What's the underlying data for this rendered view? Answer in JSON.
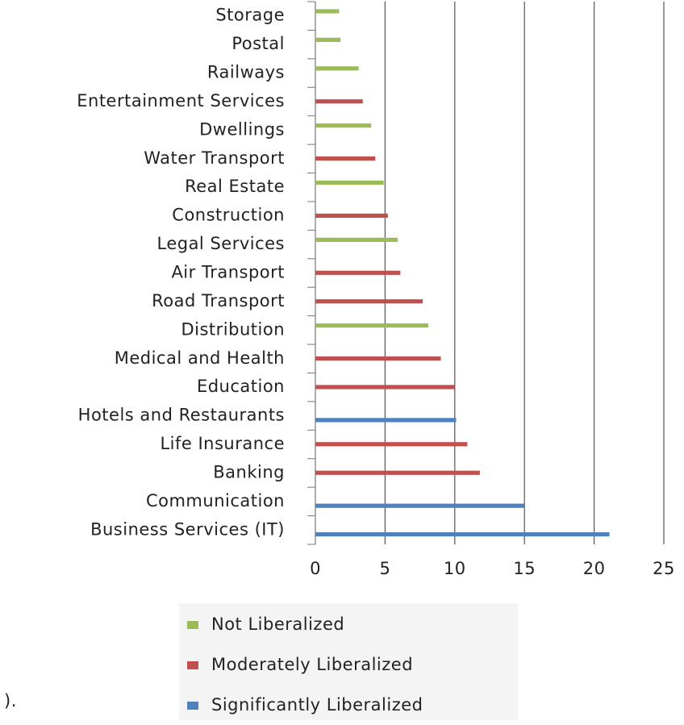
{
  "chart_data": {
    "type": "bar",
    "orientation": "horizontal",
    "categories": [
      "Storage",
      "Postal",
      "Railways",
      "Entertainment Services",
      "Dwellings",
      "Water Transport",
      "Real Estate",
      "Construction",
      "Legal Services",
      "Air Transport",
      "Road Transport",
      "Distribution",
      "Medical and Health",
      "Education",
      "Hotels and Restaurants",
      "Life Insurance",
      "Banking",
      "Communication",
      "Business Services (IT)"
    ],
    "series": [
      {
        "name": "Not Liberalized",
        "color": "#9bbb59",
        "values": [
          1.7,
          1.8,
          3.1,
          null,
          4.0,
          null,
          4.9,
          null,
          5.9,
          null,
          null,
          8.1,
          null,
          null,
          null,
          null,
          null,
          null,
          null
        ]
      },
      {
        "name": "Moderately Liberalized",
        "color": "#c0504d",
        "values": [
          null,
          null,
          null,
          3.4,
          null,
          4.3,
          null,
          5.2,
          null,
          6.1,
          7.7,
          null,
          9.0,
          10.0,
          null,
          10.9,
          11.8,
          null,
          null
        ]
      },
      {
        "name": "Significantly Liberalized",
        "color": "#4f81bd",
        "values": [
          null,
          null,
          null,
          null,
          null,
          null,
          null,
          null,
          null,
          null,
          null,
          null,
          null,
          null,
          10.1,
          null,
          null,
          15.0,
          21.1
        ]
      }
    ],
    "xlim": [
      0,
      25
    ],
    "xticks": [
      0,
      5,
      10,
      15,
      20,
      25
    ],
    "grid": true,
    "legend": "bottom"
  },
  "trailing_text": ")."
}
